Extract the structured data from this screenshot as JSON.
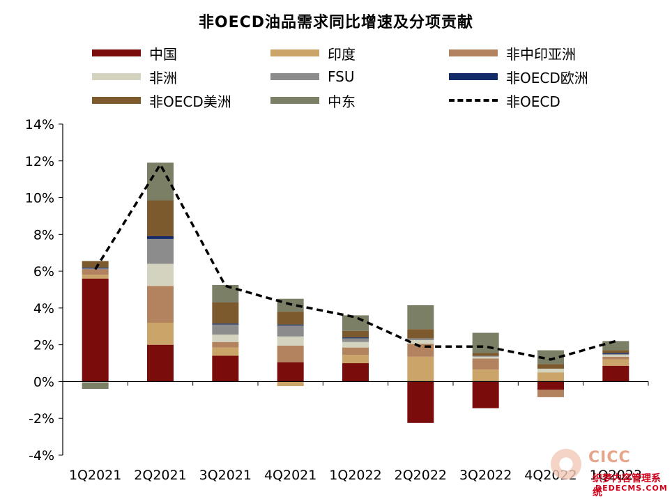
{
  "chart_data": {
    "type": "bar",
    "stacked": true,
    "title": "非OECD油品需求同比增速及分项贡献",
    "categories": [
      "1Q2021",
      "2Q2021",
      "3Q2021",
      "4Q2021",
      "1Q2022",
      "2Q2022",
      "3Q2022",
      "4Q2022",
      "1Q2023"
    ],
    "ylim": [
      -4,
      14
    ],
    "yticks": [
      "-4%",
      "-2%",
      "0%",
      "2%",
      "4%",
      "6%",
      "8%",
      "10%",
      "12%",
      "14%"
    ],
    "series": [
      {
        "name": "中国",
        "color": "#7a0c0c",
        "values": [
          5.6,
          2.0,
          1.4,
          1.05,
          1.0,
          -2.25,
          -1.45,
          -0.45,
          0.85
        ]
      },
      {
        "name": "印度",
        "color": "#caa468",
        "values": [
          0.2,
          1.2,
          0.45,
          -0.25,
          0.45,
          1.35,
          0.65,
          0.5,
          0.35
        ]
      },
      {
        "name": "非中印亚洲",
        "color": "#b3835f",
        "values": [
          0.3,
          2.0,
          0.3,
          0.9,
          0.4,
          0.7,
          0.6,
          -0.4,
          0.15
        ]
      },
      {
        "name": "非洲",
        "color": "#d3d3c0",
        "values": [
          -0.05,
          1.2,
          0.4,
          0.5,
          0.3,
          0.2,
          0.1,
          0.2,
          0.1
        ]
      },
      {
        "name": "FSU",
        "color": "#8c8c8c",
        "values": [
          0.05,
          1.35,
          0.55,
          0.6,
          0.2,
          0.1,
          0.05,
          0.0,
          0.05
        ]
      },
      {
        "name": "非OECD欧洲",
        "color": "#142b6a",
        "values": [
          0.05,
          0.15,
          0.05,
          0.05,
          0.05,
          0.0,
          0.0,
          0.0,
          0.05
        ]
      },
      {
        "name": "非OECD美洲",
        "color": "#7d5a2e",
        "values": [
          0.35,
          1.95,
          1.15,
          0.7,
          0.35,
          0.5,
          0.15,
          0.25,
          0.15
        ]
      },
      {
        "name": "中东",
        "color": "#7b7f66",
        "values": [
          -0.35,
          2.05,
          0.95,
          0.7,
          0.85,
          1.3,
          1.1,
          0.75,
          0.5
        ]
      }
    ],
    "line": {
      "name": "非OECD",
      "values": [
        6.1,
        11.8,
        5.2,
        4.2,
        3.5,
        1.9,
        1.9,
        1.2,
        2.2
      ]
    }
  },
  "watermark": {
    "logo_text": "CICC",
    "site_name": "织梦内容管理系统",
    "site_url": "DEDECMS.COM"
  }
}
